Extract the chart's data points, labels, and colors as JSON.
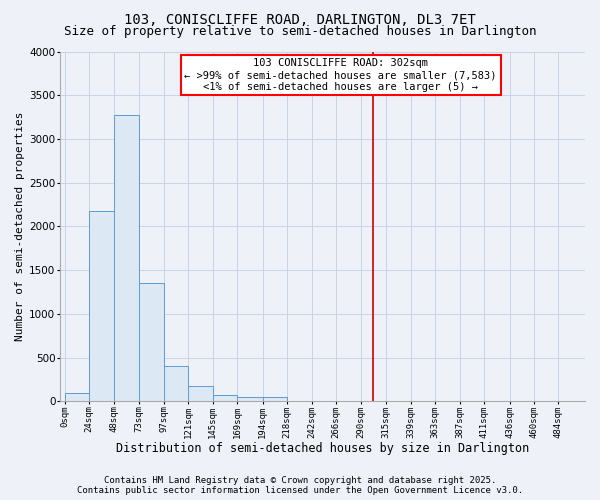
{
  "title_line1": "103, CONISCLIFFE ROAD, DARLINGTON, DL3 7ET",
  "title_line2": "Size of property relative to semi-detached houses in Darlington",
  "xlabel": "Distribution of semi-detached houses by size in Darlington",
  "ylabel": "Number of semi-detached properties",
  "annotation_line1": "103 CONISCLIFFE ROAD: 302sqm",
  "annotation_line2": "← >99% of semi-detached houses are smaller (7,583)",
  "annotation_line3": "<1% of semi-detached houses are larger (5) →",
  "footer_line1": "Contains HM Land Registry data © Crown copyright and database right 2025.",
  "footer_line2": "Contains public sector information licensed under the Open Government Licence v3.0.",
  "property_size": 302,
  "bar_left_edges": [
    0,
    24,
    48,
    73,
    97,
    121,
    145,
    169,
    194,
    218,
    242,
    266,
    290,
    315,
    339,
    363,
    387,
    411,
    436,
    460
  ],
  "bar_heights": [
    100,
    2175,
    3270,
    1350,
    410,
    175,
    75,
    50,
    50,
    5,
    3,
    1,
    0,
    0,
    0,
    0,
    0,
    0,
    0,
    0
  ],
  "bar_widths": [
    24,
    25,
    25,
    24,
    24,
    24,
    24,
    25,
    24,
    24,
    24,
    24,
    25,
    24,
    24,
    24,
    24,
    25,
    24,
    24
  ],
  "bar_color": "#dce9f5",
  "bar_edge_color": "#5b9bd5",
  "vline_color": "#cc0000",
  "vline_x": 302,
  "ylim": [
    0,
    4000
  ],
  "xlim": [
    -5,
    510
  ],
  "grid_color": "#c8d4e8",
  "background_color": "#eef2f8",
  "tick_labels": [
    "0sqm",
    "24sqm",
    "48sqm",
    "73sqm",
    "97sqm",
    "121sqm",
    "145sqm",
    "169sqm",
    "194sqm",
    "218sqm",
    "242sqm",
    "266sqm",
    "290sqm",
    "315sqm",
    "339sqm",
    "363sqm",
    "387sqm",
    "411sqm",
    "436sqm",
    "460sqm",
    "484sqm"
  ],
  "tick_positions": [
    0,
    24,
    48,
    73,
    97,
    121,
    145,
    169,
    194,
    218,
    242,
    266,
    290,
    315,
    339,
    363,
    387,
    411,
    436,
    460,
    484
  ],
  "ytick_positions": [
    0,
    500,
    1000,
    1500,
    2000,
    2500,
    3000,
    3500,
    4000
  ],
  "title_fontsize": 10,
  "subtitle_fontsize": 9,
  "axis_label_fontsize": 8.5,
  "tick_fontsize": 6.5,
  "annotation_fontsize": 7.5,
  "footer_fontsize": 6.5,
  "ylabel_fontsize": 8
}
